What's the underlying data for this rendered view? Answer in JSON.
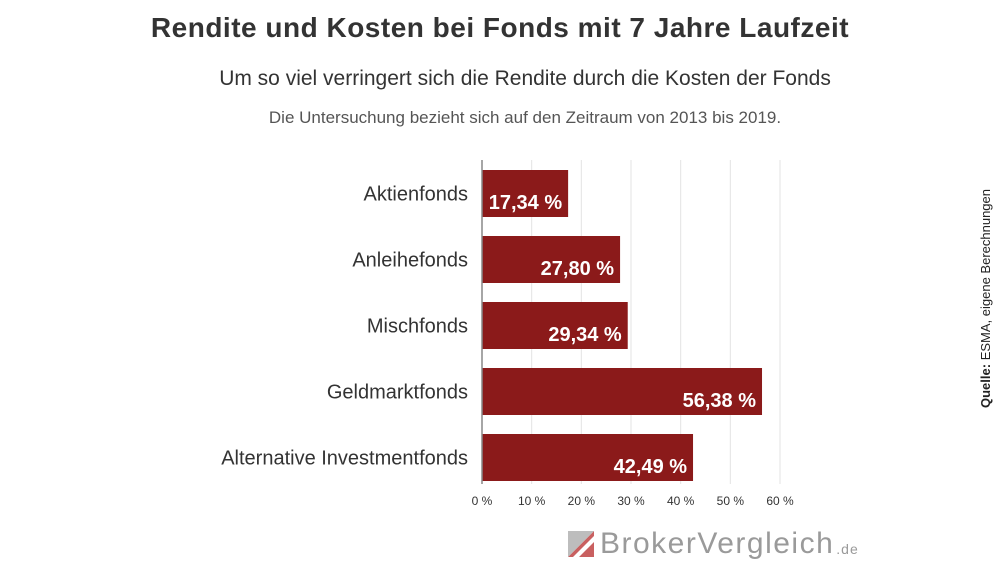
{
  "chart_data": {
    "type": "bar",
    "orientation": "horizontal",
    "title": "Rendite und Kosten bei Fonds mit 7 Jahre Laufzeit",
    "subtitle": "Um so viel verringert sich die Rendite durch die Kosten der Fonds",
    "note": "Die Untersuchung bezieht sich auf den Zeitraum von 2013 bis 2019.",
    "categories": [
      "Aktienfonds",
      "Anleihefonds",
      "Mischfonds",
      "Geldmarktfonds",
      "Alternative Investmentfonds"
    ],
    "values": [
      17.34,
      27.8,
      29.34,
      56.38,
      42.49
    ],
    "value_labels": [
      "17,34 %",
      "27,80 %",
      "29,34 %",
      "56,38 %",
      "42,49 %"
    ],
    "xlim": [
      0,
      60
    ],
    "ticks": [
      0,
      10,
      20,
      30,
      40,
      50,
      60
    ],
    "tick_labels": [
      "0 %",
      "10 %",
      "20 %",
      "30 %",
      "40 %",
      "50 %",
      "60 %"
    ],
    "grid": true,
    "bar_color": "#8b1a1a"
  },
  "source": {
    "key": "Quelle:",
    "text": "ESMA, eigene Berechnungen"
  },
  "logo": {
    "text": "BrokerVergleich",
    "tld": ".de",
    "icon": "brokervergleich-logo-icon"
  }
}
